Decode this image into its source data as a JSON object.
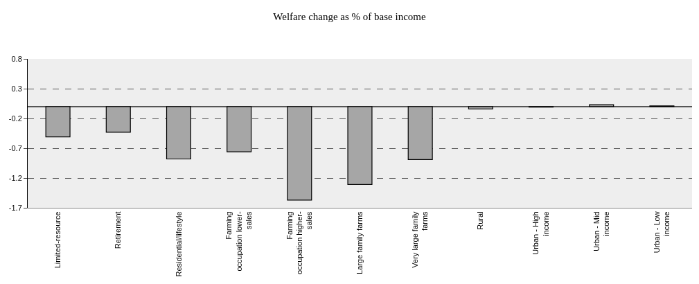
{
  "chart_data": {
    "type": "bar",
    "title": "Welfare change as % of base income",
    "categories": [
      "Limited-resource",
      "Retirement",
      "Residential/lifestyle",
      "Farming\noccupation lower-\nsales",
      "Farming\noccupation higher-\nsales",
      "Large family farms",
      "Very large family\nfarms",
      "Rural",
      "Urban - High\nincome",
      "Urban - Mid\nincome",
      "Urban - Low\nincome"
    ],
    "values": [
      -0.51,
      -0.43,
      -0.88,
      -0.76,
      -1.57,
      -1.31,
      -0.89,
      -0.04,
      -0.01,
      0.03,
      0.01
    ],
    "color": "#a6a6a6",
    "ylim": [
      -1.7,
      0.8
    ],
    "yticks": [
      -1.7,
      -1.2,
      -0.7,
      -0.2,
      0.3,
      0.8
    ],
    "grid": "y",
    "line_style": "dashed"
  }
}
